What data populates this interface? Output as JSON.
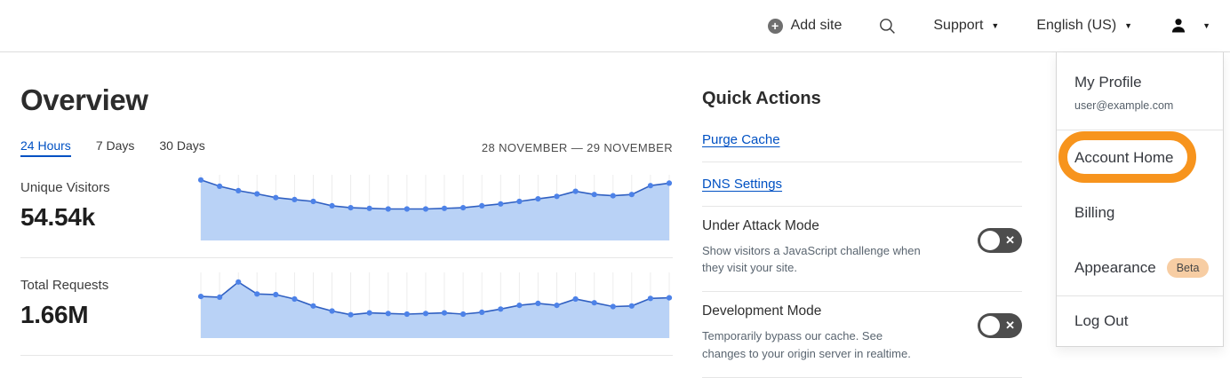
{
  "nav": {
    "add_site": "Add site",
    "support": "Support",
    "language": "English (US)"
  },
  "icons": {
    "plus": "+",
    "caret": "▼",
    "toggle_x": "✕"
  },
  "overview": {
    "title": "Overview",
    "tabs": [
      {
        "label": "24 Hours",
        "active": true
      },
      {
        "label": "7 Days",
        "active": false
      },
      {
        "label": "30 Days",
        "active": false
      }
    ],
    "date_range": "28 NOVEMBER — 29 NOVEMBER",
    "stats": [
      {
        "label": "Unique Visitors",
        "value": "54.54k"
      },
      {
        "label": "Total Requests",
        "value": "1.66M"
      }
    ]
  },
  "chart_data": [
    {
      "type": "area",
      "title": "Unique Visitors (24 Hours)",
      "total_label": "54.54k",
      "xlabel": "hourly samples, 28 November — 29 November",
      "ylabel": "none shown; values are relative heights 0-1 of chart area",
      "grid": "light vertical gridline at each sample",
      "legend": "none",
      "values": [
        0.96,
        0.86,
        0.79,
        0.74,
        0.68,
        0.65,
        0.62,
        0.55,
        0.52,
        0.51,
        0.5,
        0.5,
        0.5,
        0.51,
        0.52,
        0.55,
        0.58,
        0.62,
        0.66,
        0.7,
        0.78,
        0.73,
        0.71,
        0.73,
        0.87,
        0.91
      ]
    },
    {
      "type": "area",
      "title": "Total Requests (24 Hours)",
      "total_label": "1.66M",
      "xlabel": "hourly samples, 28 November — 29 November",
      "ylabel": "none shown; values are relative heights 0-1 of chart area",
      "grid": "light vertical gridline at each sample",
      "legend": "none",
      "values": [
        0.66,
        0.65,
        0.89,
        0.7,
        0.69,
        0.62,
        0.51,
        0.43,
        0.37,
        0.4,
        0.39,
        0.38,
        0.39,
        0.4,
        0.38,
        0.41,
        0.46,
        0.52,
        0.55,
        0.52,
        0.62,
        0.56,
        0.5,
        0.51,
        0.63,
        0.64
      ]
    }
  ],
  "quick_actions": {
    "title": "Quick Actions",
    "links": [
      {
        "label": "Purge Cache"
      },
      {
        "label": "DNS Settings"
      }
    ],
    "toggles": [
      {
        "label": "Under Attack Mode",
        "description": "Show visitors a JavaScript challenge when they visit your site.",
        "state": "off"
      },
      {
        "label": "Development Mode",
        "description": "Temporarily bypass our cache. See changes to your origin server in realtime.",
        "state": "off"
      }
    ]
  },
  "account_menu": {
    "profile": {
      "name": "My Profile",
      "email": "user@example.com"
    },
    "items": [
      {
        "label": "Account Home",
        "highlighted": true
      },
      {
        "label": "Billing"
      },
      {
        "label": "Appearance",
        "badge": "Beta"
      },
      {
        "label": "Log Out"
      }
    ]
  },
  "annotation": {
    "description": "hand-drawn orange rounded ring highlighting the Account Home menu item",
    "color": "#F7941D"
  },
  "colors": {
    "link_blue": "#0051C3",
    "chart_line": "#3060C2",
    "chart_dot": "#4D82E8",
    "chart_fill": "#B9D2F6",
    "chart_grid": "#ECECEC",
    "toggle_off_bg": "#4D4D4D",
    "beta_badge_bg": "#F7CDA3",
    "beta_badge_text": "#474747",
    "highlight_orange": "#F7941D"
  }
}
